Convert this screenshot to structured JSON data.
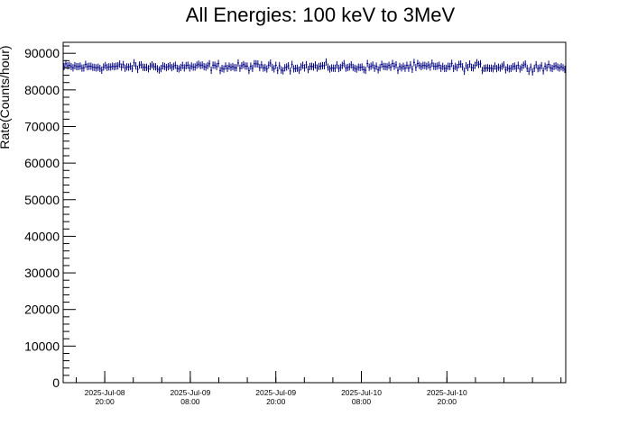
{
  "chart_data": {
    "type": "scatter",
    "style": "histogram-with-error-bars",
    "title": "All Energies:  100 keV to 3MeV",
    "xlabel": "",
    "ylabel": "Rate(Counts/hour)",
    "ylim": [
      0,
      93000
    ],
    "yticks": [
      "0",
      "10000",
      "20000",
      "30000",
      "40000",
      "50000",
      "60000",
      "70000",
      "80000",
      "90000"
    ],
    "xlim": [
      "2025-Jul-08 14:10",
      "2025-Jul-11 12:40"
    ],
    "xticks": [
      {
        "date": "2025-Jul-08",
        "time": "20:00"
      },
      {
        "date": "2025-Jul-09",
        "time": "08:00"
      },
      {
        "date": "2025-Jul-09",
        "time": "20:00"
      },
      {
        "date": "2025-Jul-10",
        "time": "08:00"
      },
      {
        "date": "2025-Jul-10",
        "time": "20:00"
      }
    ],
    "series": [
      {
        "color": "#000080",
        "points": 280,
        "mean": 86300,
        "spread": 700,
        "error": 1000
      }
    ],
    "grid": false,
    "legend": "none"
  }
}
